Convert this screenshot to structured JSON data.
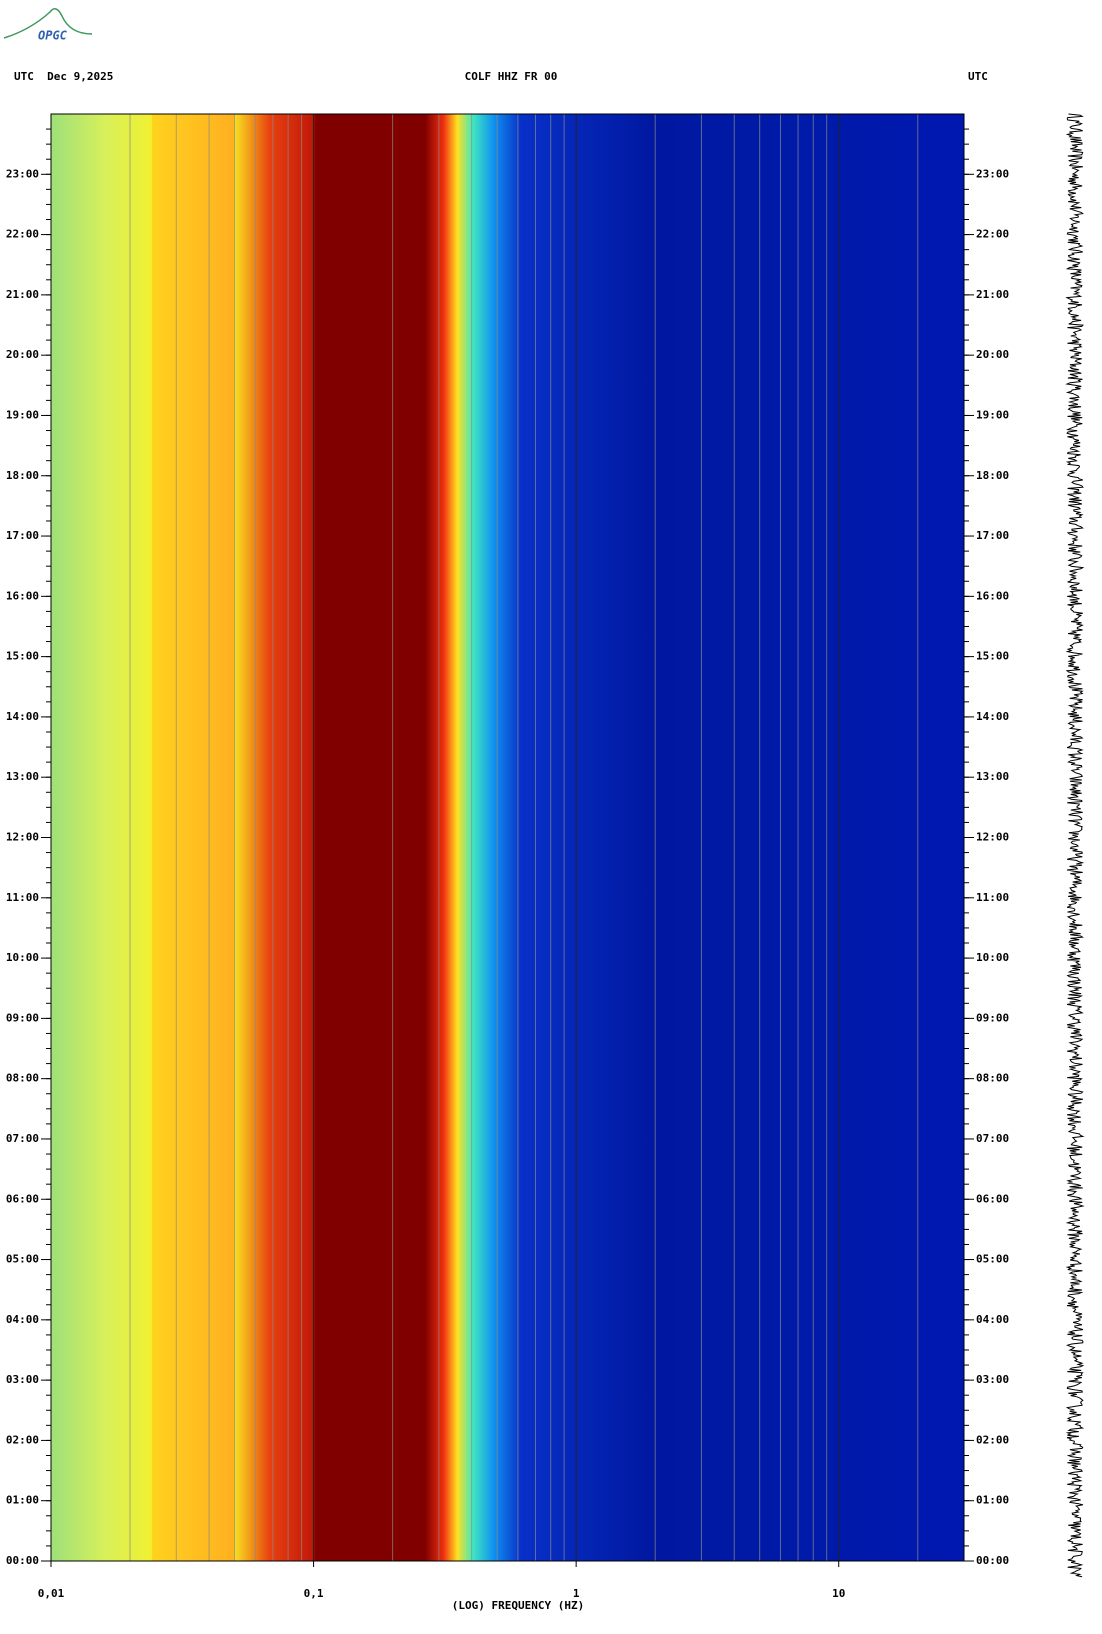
{
  "header": {
    "logo": "OPGC",
    "left": "UTC  Dec 9,2025",
    "center": "COLF HHZ FR 00",
    "right": "UTC"
  },
  "chart_data": {
    "type": "spectrogram",
    "xlabel": "(LOG) FREQUENCY (HZ)",
    "xscale": "log",
    "xlim": [
      0.01,
      30
    ],
    "xticks": [
      {
        "value": 0.01,
        "label": "0,01"
      },
      {
        "value": 0.1,
        "label": "0,1"
      },
      1,
      10
    ],
    "ylim": [
      0,
      24
    ],
    "yticks": [
      {
        "value": 0,
        "label": "00:00"
      },
      {
        "value": 1,
        "label": "01:00"
      },
      {
        "value": 2,
        "label": "02:00"
      },
      {
        "value": 3,
        "label": "03:00"
      },
      {
        "value": 4,
        "label": "04:00"
      },
      {
        "value": 5,
        "label": "05:00"
      },
      {
        "value": 6,
        "label": "06:00"
      },
      {
        "value": 7,
        "label": "07:00"
      },
      {
        "value": 8,
        "label": "08:00"
      },
      {
        "value": 9,
        "label": "09:00"
      },
      {
        "value": 10,
        "label": "10:00"
      },
      {
        "value": 11,
        "label": "11:00"
      },
      {
        "value": 12,
        "label": "12:00"
      },
      {
        "value": 13,
        "label": "13:00"
      },
      {
        "value": 14,
        "label": "14:00"
      },
      {
        "value": 15,
        "label": "15:00"
      },
      {
        "value": 16,
        "label": "16:00"
      },
      {
        "value": 17,
        "label": "17:00"
      },
      {
        "value": 18,
        "label": "18:00"
      },
      {
        "value": 19,
        "label": "19:00"
      },
      {
        "value": 20,
        "label": "20:00"
      },
      {
        "value": 21,
        "label": "21:00"
      },
      {
        "value": 22,
        "label": "22:00"
      },
      {
        "value": 23,
        "label": "23:00"
      }
    ]
  }
}
